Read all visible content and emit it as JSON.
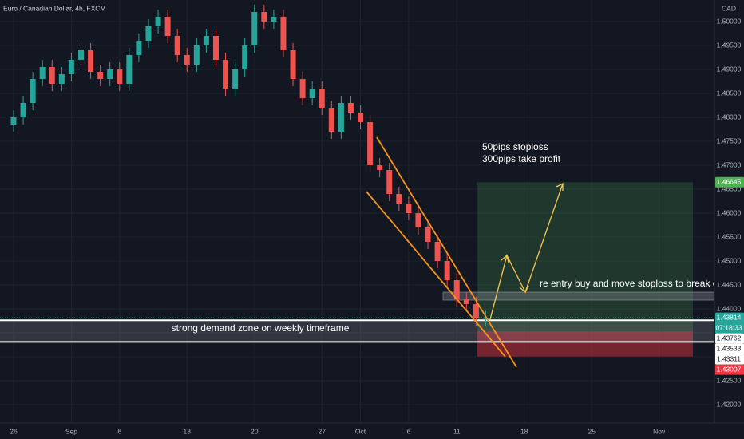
{
  "chart_data": {
    "type": "candlestick",
    "title": "Euro / Canadian Dollar, 4h, FXCM",
    "currency": "CAD",
    "x": [
      0,
      1,
      2,
      3,
      4,
      5,
      6,
      7,
      8,
      9,
      10,
      11,
      12,
      13,
      14,
      15,
      16,
      17,
      18,
      19,
      20,
      21,
      22,
      23,
      24,
      25,
      26,
      27,
      28,
      29,
      30,
      31,
      32,
      33,
      34,
      35,
      36,
      37,
      38,
      39,
      40,
      41,
      42,
      43,
      44,
      45,
      46,
      47,
      48,
      49
    ],
    "open": [
      1.4785,
      1.48,
      1.483,
      1.488,
      1.4905,
      1.487,
      1.489,
      1.492,
      1.494,
      1.4895,
      1.488,
      1.49,
      1.487,
      1.493,
      1.496,
      1.499,
      1.501,
      1.497,
      1.493,
      1.491,
      1.495,
      1.497,
      1.492,
      1.486,
      1.49,
      1.495,
      1.502,
      1.5,
      1.501,
      1.494,
      1.488,
      1.484,
      1.486,
      1.482,
      1.477,
      1.483,
      1.481,
      1.479,
      1.47,
      1.469,
      1.464,
      1.462,
      1.46,
      1.457,
      1.454,
      1.45,
      1.446,
      1.442,
      1.441,
      1.438
    ],
    "high": [
      1.4815,
      1.4845,
      1.4895,
      1.492,
      1.492,
      1.4905,
      1.4935,
      1.4955,
      1.4955,
      1.491,
      1.4915,
      1.4915,
      1.4945,
      1.4975,
      1.5005,
      1.5025,
      1.5025,
      1.4985,
      1.4945,
      1.4965,
      1.4985,
      1.4985,
      1.4935,
      1.4915,
      1.4965,
      1.5035,
      1.5035,
      1.5025,
      1.5025,
      1.4955,
      1.4895,
      1.4875,
      1.4875,
      1.4835,
      1.4845,
      1.4845,
      1.4825,
      1.4805,
      1.4715,
      1.4705,
      1.4655,
      1.4635,
      1.4615,
      1.4585,
      1.4555,
      1.4515,
      1.4475,
      1.4435,
      1.4425,
      1.4396
    ],
    "low": [
      1.477,
      1.4785,
      1.4815,
      1.4865,
      1.4855,
      1.4855,
      1.4875,
      1.4905,
      1.488,
      1.4865,
      1.4865,
      1.4855,
      1.4855,
      1.4915,
      1.4945,
      1.4975,
      1.4955,
      1.4915,
      1.4895,
      1.4895,
      1.4935,
      1.4905,
      1.4845,
      1.4845,
      1.4885,
      1.4935,
      1.4985,
      1.4985,
      1.4925,
      1.4865,
      1.4825,
      1.4825,
      1.4805,
      1.4755,
      1.4755,
      1.4795,
      1.4775,
      1.4685,
      1.4675,
      1.4625,
      1.4605,
      1.4585,
      1.4555,
      1.4525,
      1.4485,
      1.4445,
      1.4405,
      1.4395,
      1.4365,
      1.4365
    ],
    "close": [
      1.48,
      1.483,
      1.488,
      1.4905,
      1.487,
      1.489,
      1.492,
      1.494,
      1.4895,
      1.488,
      1.49,
      1.487,
      1.493,
      1.496,
      1.499,
      1.501,
      1.497,
      1.493,
      1.491,
      1.495,
      1.497,
      1.492,
      1.486,
      1.49,
      1.495,
      1.502,
      1.5,
      1.501,
      1.494,
      1.488,
      1.484,
      1.486,
      1.482,
      1.477,
      1.483,
      1.481,
      1.479,
      1.47,
      1.469,
      1.464,
      1.462,
      1.46,
      1.457,
      1.454,
      1.45,
      1.446,
      1.442,
      1.441,
      1.438,
      1.4381
    ],
    "up_color": "#26a69a",
    "down_color": "#ef5350",
    "xlim": [
      -1.408,
      72.74
    ],
    "xticks": [
      {
        "value": 0,
        "label": "26"
      },
      {
        "value": 6,
        "label": "Sep"
      },
      {
        "value": 11,
        "label": "6"
      },
      {
        "value": 18,
        "label": "13"
      },
      {
        "value": 25,
        "label": "20"
      },
      {
        "value": 32,
        "label": "27"
      },
      {
        "value": 36,
        "label": "Oct"
      },
      {
        "value": 41,
        "label": "6"
      },
      {
        "value": 46,
        "label": "11"
      },
      {
        "value": 53,
        "label": "18"
      },
      {
        "value": 60,
        "label": "25"
      },
      {
        "value": 67,
        "label": "Nov"
      }
    ],
    "ylim": [
      1.41617,
      1.5045
    ],
    "yticks": [
      {
        "value": 1.42,
        "label": "1.42000"
      },
      {
        "value": 1.425,
        "label": "1.42500"
      },
      {
        "value": 1.43,
        "label": "1.43000"
      },
      {
        "value": 1.435,
        "label": "1.43500"
      },
      {
        "value": 1.44,
        "label": "1.44000"
      },
      {
        "value": 1.445,
        "label": "1.44500"
      },
      {
        "value": 1.45,
        "label": "1.45000"
      },
      {
        "value": 1.455,
        "label": "1.45500"
      },
      {
        "value": 1.46,
        "label": "1.46000"
      },
      {
        "value": 1.465,
        "label": "1.46500"
      },
      {
        "value": 1.47,
        "label": "1.47000"
      },
      {
        "value": 1.475,
        "label": "1.47500"
      },
      {
        "value": 1.48,
        "label": "1.48000"
      },
      {
        "value": 1.485,
        "label": "1.48500"
      },
      {
        "value": 1.49,
        "label": "1.49000"
      },
      {
        "value": 1.495,
        "label": "1.49500"
      },
      {
        "value": 1.5,
        "label": "1.50000"
      }
    ],
    "grid": true,
    "price_tags": [
      {
        "value": 1.46645,
        "color": "#4caf50"
      },
      {
        "value": 1.43814,
        "color": "#26a69a"
      },
      {
        "value": 1.43762,
        "color": "#ffffff"
      },
      {
        "value": 1.43533,
        "color": "#ffffff"
      },
      {
        "value": 1.43311,
        "color": "#ffffff"
      },
      {
        "value": 1.43007,
        "color": "#f23645"
      }
    ],
    "countdown": "07:18:33",
    "annotations": [
      "50pips stoploss",
      "300pips take profit",
      "re entry buy and move stoploss to break ev",
      "strong demand zone on weekly timeframe"
    ]
  }
}
